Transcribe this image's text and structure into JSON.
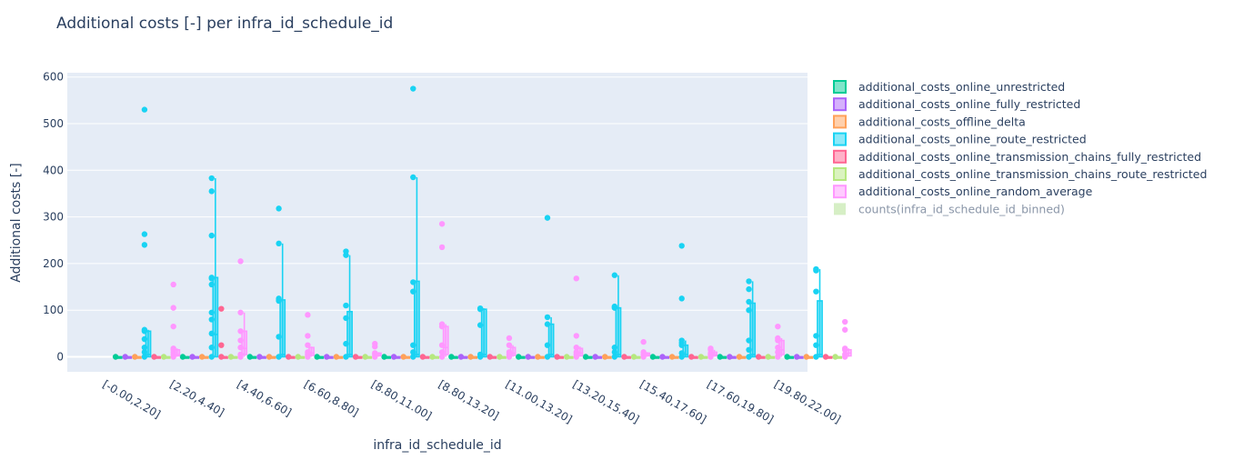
{
  "chart_data": {
    "type": "box",
    "title": "Additional costs [-] per infra_id_schedule_id",
    "xlabel": "infra_id_schedule_id",
    "ylabel": "Additional costs [-]",
    "ylim": [
      -30,
      610
    ],
    "yticks": [
      0,
      100,
      200,
      300,
      400,
      500,
      600
    ],
    "grid": true,
    "legend_position": "right",
    "categories": [
      "[-0.00,2.20]",
      "[2.20,4.40]",
      "[4.40,6.60]",
      "[6.60,8.80]",
      "[8.80,11.00]",
      "[8.80,13.20]",
      "[11.00,13.20]",
      "[13.20,15.40]",
      "[15.40,17.60]",
      "[17.60,19.80]",
      "[19.80,22.00]"
    ],
    "series": [
      {
        "name": "additional_costs_online_unrestricted",
        "color": "#00cc96",
        "boxes": [
          [
            0,
            0,
            0,
            0,
            0
          ],
          [
            0,
            0,
            0,
            0,
            0
          ],
          [
            0,
            0,
            0,
            0,
            0
          ],
          [
            0,
            0,
            0,
            0,
            0
          ],
          [
            0,
            0,
            0,
            0,
            0
          ],
          [
            0,
            0,
            0,
            0,
            0
          ],
          [
            0,
            0,
            0,
            0,
            0
          ],
          [
            0,
            0,
            0,
            0,
            0
          ],
          [
            0,
            0,
            0,
            0,
            0
          ],
          [
            0,
            0,
            0,
            0,
            0
          ],
          [
            0,
            0,
            0,
            0,
            0
          ]
        ],
        "points": [
          [
            0
          ],
          [
            0
          ],
          [
            0
          ],
          [
            0
          ],
          [
            0
          ],
          [
            0
          ],
          [
            0
          ],
          [
            0
          ],
          [
            0
          ],
          [
            0
          ],
          [
            0
          ]
        ]
      },
      {
        "name": "additional_costs_online_fully_restricted",
        "color": "#ab63fa",
        "boxes": [
          [
            0,
            0,
            0,
            0,
            0
          ],
          [
            0,
            0,
            0,
            0,
            0
          ],
          [
            0,
            0,
            0,
            0,
            0
          ],
          [
            0,
            0,
            0,
            0,
            0
          ],
          [
            0,
            0,
            0,
            0,
            0
          ],
          [
            0,
            0,
            0,
            0,
            0
          ],
          [
            0,
            0,
            0,
            0,
            0
          ],
          [
            0,
            0,
            0,
            0,
            0
          ],
          [
            0,
            0,
            0,
            0,
            0
          ],
          [
            0,
            0,
            0,
            0,
            0
          ],
          [
            0,
            0,
            0,
            0,
            0
          ]
        ],
        "points": [
          [
            0
          ],
          [
            0
          ],
          [
            0
          ],
          [
            0
          ],
          [
            0
          ],
          [
            0
          ],
          [
            0
          ],
          [
            0
          ],
          [
            0
          ],
          [
            0
          ],
          [
            0
          ]
        ]
      },
      {
        "name": "additional_costs_offline_delta",
        "color": "#ffa15a",
        "boxes": [
          [
            0,
            0,
            0,
            0,
            0
          ],
          [
            0,
            0,
            0,
            0,
            0
          ],
          [
            0,
            0,
            0,
            0,
            0
          ],
          [
            0,
            0,
            0,
            0,
            0
          ],
          [
            0,
            0,
            0,
            0,
            0
          ],
          [
            0,
            0,
            0,
            0,
            0
          ],
          [
            0,
            0,
            0,
            0,
            0
          ],
          [
            0,
            0,
            0,
            0,
            0
          ],
          [
            0,
            0,
            0,
            0,
            0
          ],
          [
            0,
            0,
            0,
            0,
            0
          ],
          [
            0,
            0,
            0,
            0,
            0
          ]
        ],
        "points": [
          [
            0
          ],
          [
            0
          ],
          [
            0
          ],
          [
            0
          ],
          [
            0
          ],
          [
            0
          ],
          [
            0
          ],
          [
            0
          ],
          [
            0
          ],
          [
            0
          ],
          [
            0
          ]
        ]
      },
      {
        "name": "additional_costs_online_route_restricted",
        "color": "#19d3f3",
        "boxes": [
          [
            0,
            0,
            5,
            55,
            58
          ],
          [
            0,
            0,
            48,
            170,
            383
          ],
          [
            0,
            0,
            5,
            122,
            243
          ],
          [
            0,
            0,
            5,
            97,
            218
          ],
          [
            0,
            0,
            5,
            162,
            385
          ],
          [
            0,
            0,
            5,
            102,
            104
          ],
          [
            0,
            0,
            5,
            70,
            85
          ],
          [
            0,
            0,
            5,
            105,
            175
          ],
          [
            0,
            0,
            5,
            25,
            35
          ],
          [
            0,
            0,
            5,
            115,
            162
          ],
          [
            0,
            0,
            5,
            120,
            188
          ]
        ],
        "points": [
          [
            0,
            10,
            20,
            38,
            55,
            58,
            240,
            263,
            530
          ],
          [
            0,
            20,
            50,
            80,
            95,
            155,
            168,
            170,
            260,
            355,
            383
          ],
          [
            0,
            43,
            120,
            122,
            125,
            243,
            318
          ],
          [
            0,
            28,
            83,
            110,
            218,
            226
          ],
          [
            0,
            10,
            25,
            140,
            160,
            385,
            575
          ],
          [
            0,
            5,
            68,
            102,
            104
          ],
          [
            0,
            25,
            70,
            85,
            298
          ],
          [
            0,
            10,
            20,
            105,
            108,
            175
          ],
          [
            0,
            8,
            25,
            30,
            35,
            125,
            238
          ],
          [
            0,
            15,
            35,
            100,
            118,
            145,
            162
          ],
          [
            0,
            25,
            45,
            140,
            185,
            188
          ]
        ]
      },
      {
        "name": "additional_costs_online_transmission_chains_fully_restricted",
        "color": "#ff6692",
        "boxes": [
          [
            0,
            0,
            0,
            0,
            0
          ],
          [
            0,
            0,
            0,
            0,
            0
          ],
          [
            0,
            0,
            0,
            0,
            0
          ],
          [
            0,
            0,
            0,
            0,
            0
          ],
          [
            0,
            0,
            0,
            0,
            0
          ],
          [
            0,
            0,
            0,
            0,
            0
          ],
          [
            0,
            0,
            0,
            0,
            0
          ],
          [
            0,
            0,
            0,
            0,
            0
          ],
          [
            0,
            0,
            0,
            0,
            0
          ],
          [
            0,
            0,
            0,
            0,
            0
          ],
          [
            0,
            0,
            0,
            0,
            0
          ]
        ],
        "points": [
          [
            0
          ],
          [
            0,
            25,
            103
          ],
          [
            0
          ],
          [
            0
          ],
          [
            0
          ],
          [
            0
          ],
          [
            0
          ],
          [
            0
          ],
          [
            0
          ],
          [
            0
          ],
          [
            0
          ]
        ]
      },
      {
        "name": "additional_costs_online_transmission_chains_route_restricted",
        "color": "#b6e880",
        "boxes": [
          [
            0,
            0,
            0,
            0,
            0
          ],
          [
            0,
            0,
            0,
            0,
            0
          ],
          [
            0,
            0,
            0,
            0,
            0
          ],
          [
            0,
            0,
            0,
            0,
            0
          ],
          [
            0,
            0,
            0,
            0,
            0
          ],
          [
            0,
            0,
            0,
            0,
            0
          ],
          [
            0,
            0,
            0,
            0,
            0
          ],
          [
            0,
            0,
            0,
            0,
            0
          ],
          [
            0,
            0,
            0,
            0,
            0
          ],
          [
            0,
            0,
            0,
            0,
            0
          ],
          [
            0,
            0,
            0,
            0,
            0
          ]
        ],
        "points": [
          [
            0
          ],
          [
            0
          ],
          [
            0
          ],
          [
            0
          ],
          [
            0
          ],
          [
            0
          ],
          [
            0
          ],
          [
            0
          ],
          [
            0
          ],
          [
            0
          ],
          [
            0
          ]
        ]
      },
      {
        "name": "additional_costs_online_random_average",
        "color": "#ff97ff",
        "boxes": [
          [
            0,
            2,
            5,
            15,
            18
          ],
          [
            0,
            5,
            18,
            55,
            95
          ],
          [
            0,
            3,
            8,
            20,
            22
          ],
          [
            0,
            2,
            5,
            8,
            10
          ],
          [
            0,
            5,
            20,
            65,
            70
          ],
          [
            0,
            3,
            8,
            20,
            25
          ],
          [
            0,
            2,
            8,
            18,
            22
          ],
          [
            0,
            2,
            5,
            8,
            10
          ],
          [
            0,
            2,
            5,
            10,
            15
          ],
          [
            0,
            5,
            15,
            35,
            40
          ],
          [
            0,
            2,
            8,
            15,
            18
          ]
        ],
        "points": [
          [
            0,
            5,
            10,
            15,
            18,
            65,
            105,
            155
          ],
          [
            0,
            5,
            20,
            35,
            55,
            95,
            205
          ],
          [
            0,
            5,
            10,
            25,
            45,
            90
          ],
          [
            0,
            5,
            8,
            22,
            28
          ],
          [
            0,
            10,
            25,
            65,
            70,
            235,
            285
          ],
          [
            0,
            5,
            10,
            25,
            40
          ],
          [
            0,
            5,
            10,
            20,
            45,
            168
          ],
          [
            0,
            5,
            10,
            32
          ],
          [
            0,
            5,
            8,
            15,
            18
          ],
          [
            0,
            10,
            20,
            35,
            40,
            65
          ],
          [
            0,
            5,
            15,
            18,
            58,
            75
          ]
        ]
      },
      {
        "name": "counts(infra_id_schedule_id_binned)",
        "color": "#d6efc5",
        "legend_only": true
      }
    ]
  }
}
